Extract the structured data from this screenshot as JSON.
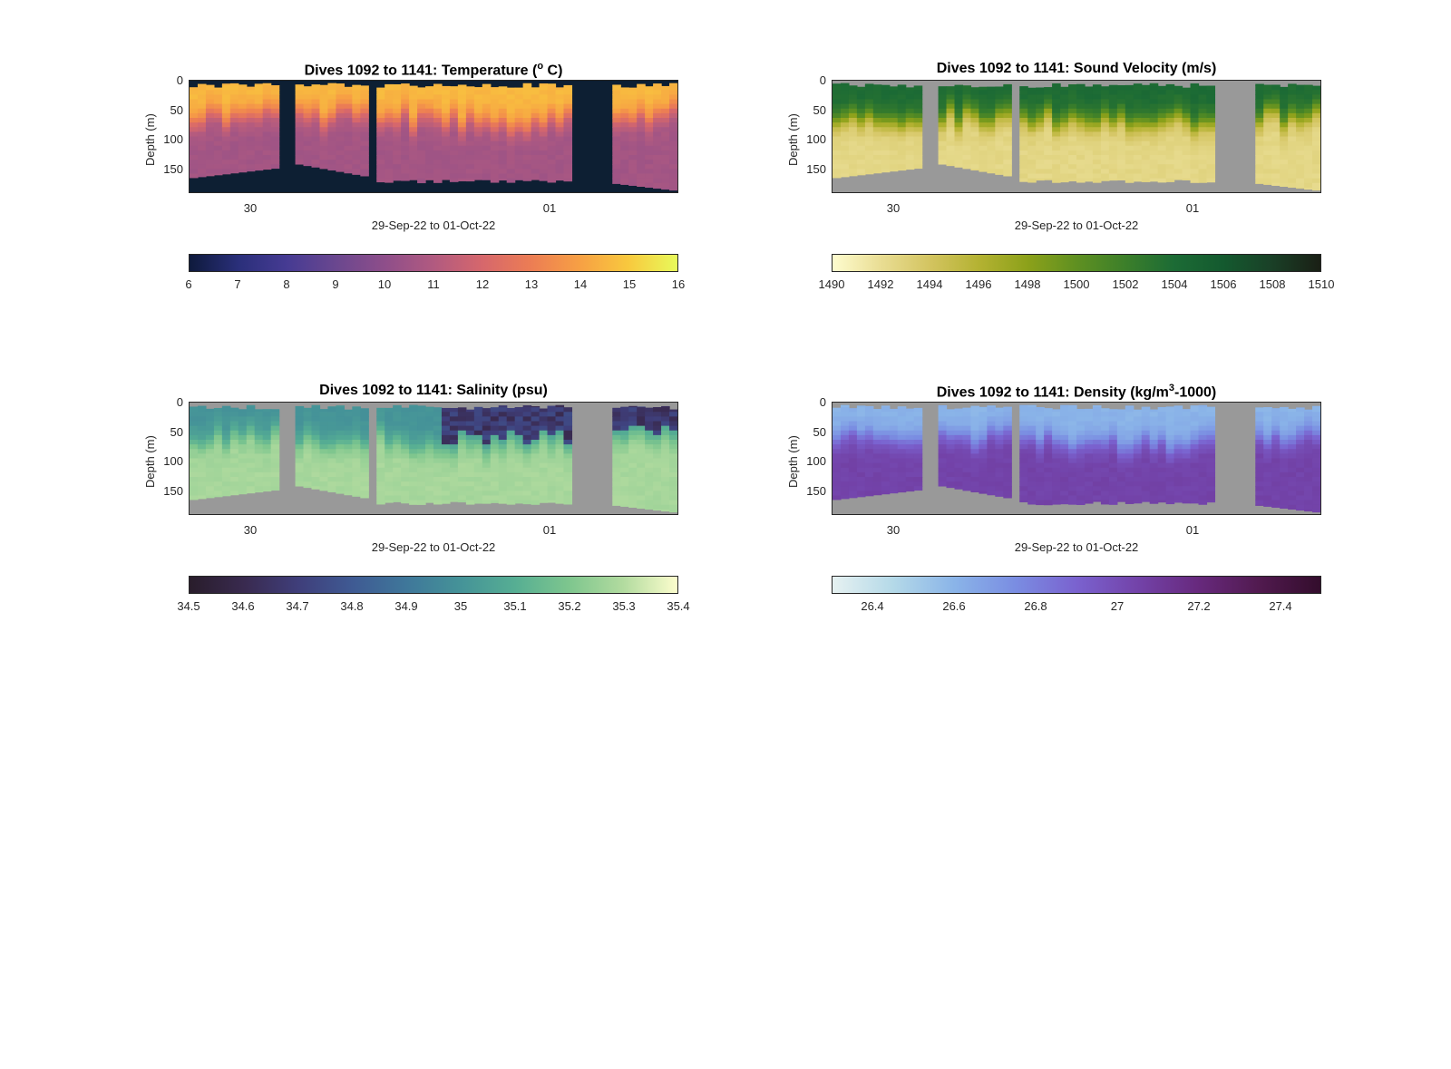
{
  "chart_data": [
    {
      "type": "heatmap",
      "title": "Dives 1092 to 1141: Temperature (",
      "title_sup": "o",
      "title_end": " C)",
      "ylabel": "Depth (m)",
      "xlabel": "29-Sep-22 to 01-Oct-22",
      "yticks": [
        "0",
        "50",
        "100",
        "150"
      ],
      "ylim": [
        0,
        190
      ],
      "xticks": [
        "30",
        "01"
      ],
      "colorbar": {
        "ticks": [
          "6",
          "7",
          "8",
          "9",
          "10",
          "11",
          "12",
          "13",
          "14",
          "15",
          "16"
        ],
        "range": [
          6,
          16
        ],
        "colors": [
          "#0e1a3c",
          "#2a2f7a",
          "#463b93",
          "#6a478f",
          "#8e4e8a",
          "#b15a80",
          "#d6676c",
          "#ec7d54",
          "#f7a044",
          "#f8c93e",
          "#e8fa5b"
        ]
      },
      "field": {
        "surface_value": 14.6,
        "deep_value": 10.6,
        "mixed_layer_depth": 60
      },
      "gap_color": "#0d1f33"
    },
    {
      "type": "heatmap",
      "title": "Dives 1092 to 1141: Sound Velocity (m/s)",
      "ylabel": "Depth (m)",
      "xlabel": "29-Sep-22 to 01-Oct-22",
      "yticks": [
        "0",
        "50",
        "100",
        "150"
      ],
      "ylim": [
        0,
        190
      ],
      "xticks": [
        "30",
        "01"
      ],
      "colorbar": {
        "ticks": [
          "1490",
          "1492",
          "1494",
          "1496",
          "1498",
          "1500",
          "1502",
          "1504",
          "1506",
          "1508",
          "1510"
        ],
        "range": [
          1490,
          1510
        ],
        "colors": [
          "#fefccf",
          "#e9dd93",
          "#d3c460",
          "#b4b232",
          "#8ca11a",
          "#5f9021",
          "#3c7f2a",
          "#1c6b35",
          "#145a2f",
          "#1a4027",
          "#1a1f15"
        ]
      },
      "field": {
        "surface_value": 1504,
        "deep_value": 1492.5,
        "mixed_layer_depth": 60
      },
      "gap_color": "#999999"
    },
    {
      "type": "heatmap",
      "title": "Dives 1092 to 1141: Salinity (psu)",
      "ylabel": "Depth (m)",
      "xlabel": "29-Sep-22 to 01-Oct-22",
      "yticks": [
        "0",
        "50",
        "100",
        "150"
      ],
      "ylim": [
        0,
        190
      ],
      "xticks": [
        "30",
        "01"
      ],
      "colorbar": {
        "ticks": [
          "34.5",
          "34.6",
          "34.7",
          "34.8",
          "34.9",
          "35",
          "35.1",
          "35.2",
          "35.3",
          "35.4"
        ],
        "range": [
          34.5,
          35.4
        ],
        "colors": [
          "#291d2b",
          "#392a4f",
          "#3f3e7a",
          "#3f5a93",
          "#3f779a",
          "#459398",
          "#56ae93",
          "#7ec68e",
          "#b2db9f",
          "#fcfdcd"
        ]
      },
      "field": {
        "surface_value": 35.0,
        "deep_value": 35.28,
        "mixed_layer_depth": 60
      },
      "gap_color": "#999999"
    },
    {
      "type": "heatmap",
      "title": "Dives 1092 to 1141: Density (kg/m",
      "title_sup": "3",
      "title_end": "-1000)",
      "ylabel": "Depth (m)",
      "xlabel": "29-Sep-22 to 01-Oct-22",
      "yticks": [
        "0",
        "50",
        "100",
        "150"
      ],
      "ylim": [
        0,
        190
      ],
      "xticks": [
        "30",
        "01"
      ],
      "colorbar": {
        "ticks": [
          "26.4",
          "26.6",
          "26.8",
          "27",
          "27.2",
          "27.4"
        ],
        "range": [
          26.3,
          27.5
        ],
        "colors": [
          "#e6f1f1",
          "#b4d9e8",
          "#8ab4e8",
          "#7a8de2",
          "#7a62cf",
          "#7343a9",
          "#67297d",
          "#511a4f",
          "#330d2c"
        ]
      },
      "field": {
        "surface_value": 26.6,
        "deep_value": 27.05,
        "mixed_layer_depth": 60
      },
      "gap_color": "#999999"
    }
  ]
}
